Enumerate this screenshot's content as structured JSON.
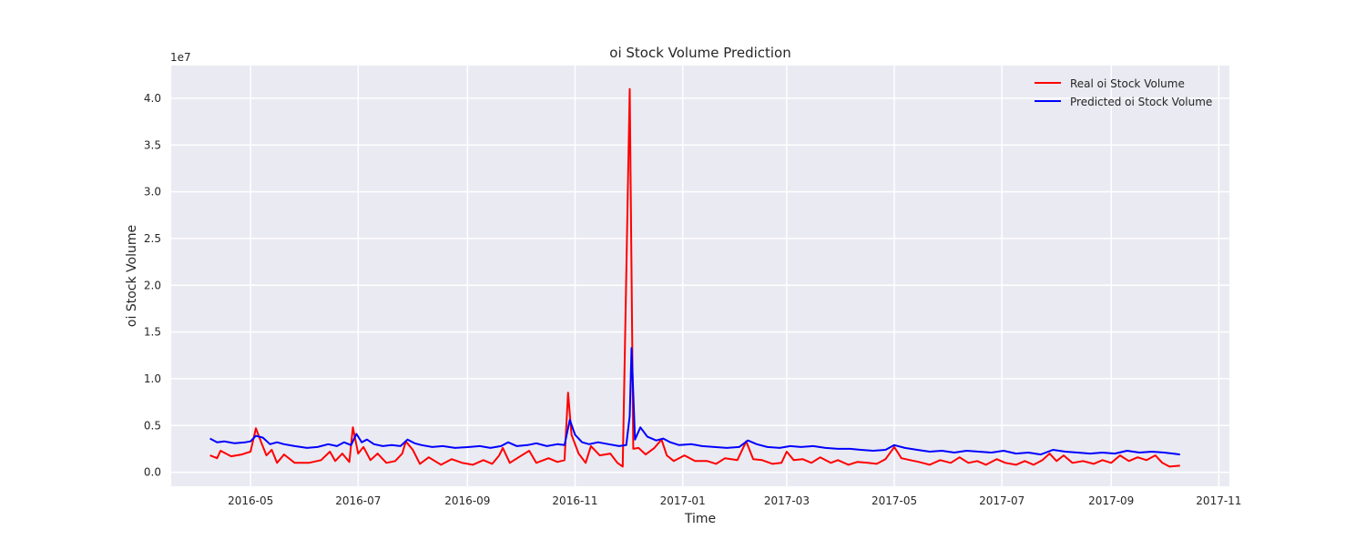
{
  "chart_data": {
    "type": "line",
    "title": "oi Stock Volume Prediction",
    "xlabel": "Time",
    "ylabel": "oi Stock Volume",
    "y_offset_label": "1e7",
    "xlim": [
      "2016-03-17",
      "2017-11-07"
    ],
    "ylim": [
      -1500000,
      43500000
    ],
    "grid": true,
    "legend_position": "top-right",
    "x_ticks": [
      "2016-05",
      "2016-07",
      "2016-09",
      "2016-11",
      "2017-01",
      "2017-03",
      "2017-05",
      "2017-07",
      "2017-09",
      "2017-11"
    ],
    "y_ticks": [
      "0.0",
      "0.5",
      "1.0",
      "1.5",
      "2.0",
      "2.5",
      "3.0",
      "3.5",
      "4.0"
    ],
    "series": [
      {
        "name": "Real oi Stock Volume",
        "color": "#ff0000",
        "points": [
          [
            "2016-04-08",
            1800000
          ],
          [
            "2016-04-12",
            1500000
          ],
          [
            "2016-04-14",
            2300000
          ],
          [
            "2016-04-20",
            1700000
          ],
          [
            "2016-04-26",
            1900000
          ],
          [
            "2016-05-01",
            2200000
          ],
          [
            "2016-05-04",
            4700000
          ],
          [
            "2016-05-07",
            3200000
          ],
          [
            "2016-05-10",
            1800000
          ],
          [
            "2016-05-13",
            2400000
          ],
          [
            "2016-05-16",
            1000000
          ],
          [
            "2016-05-20",
            1900000
          ],
          [
            "2016-05-26",
            1000000
          ],
          [
            "2016-06-03",
            1000000
          ],
          [
            "2016-06-10",
            1300000
          ],
          [
            "2016-06-15",
            2200000
          ],
          [
            "2016-06-18",
            1200000
          ],
          [
            "2016-06-22",
            2000000
          ],
          [
            "2016-06-26",
            1100000
          ],
          [
            "2016-06-28",
            4800000
          ],
          [
            "2016-07-01",
            2000000
          ],
          [
            "2016-07-04",
            2700000
          ],
          [
            "2016-07-08",
            1300000
          ],
          [
            "2016-07-12",
            2000000
          ],
          [
            "2016-07-17",
            1000000
          ],
          [
            "2016-07-22",
            1200000
          ],
          [
            "2016-07-26",
            2000000
          ],
          [
            "2016-07-28",
            3300000
          ],
          [
            "2016-08-01",
            2400000
          ],
          [
            "2016-08-05",
            900000
          ],
          [
            "2016-08-10",
            1600000
          ],
          [
            "2016-08-17",
            800000
          ],
          [
            "2016-08-23",
            1400000
          ],
          [
            "2016-08-29",
            1000000
          ],
          [
            "2016-09-04",
            800000
          ],
          [
            "2016-09-10",
            1300000
          ],
          [
            "2016-09-15",
            900000
          ],
          [
            "2016-09-19",
            1800000
          ],
          [
            "2016-09-21",
            2600000
          ],
          [
            "2016-09-25",
            1000000
          ],
          [
            "2016-09-30",
            1600000
          ],
          [
            "2016-10-06",
            2300000
          ],
          [
            "2016-10-10",
            1000000
          ],
          [
            "2016-10-17",
            1500000
          ],
          [
            "2016-10-22",
            1100000
          ],
          [
            "2016-10-26",
            1300000
          ],
          [
            "2016-10-28",
            8500000
          ],
          [
            "2016-10-30",
            4000000
          ],
          [
            "2016-11-03",
            2000000
          ],
          [
            "2016-11-07",
            1000000
          ],
          [
            "2016-11-10",
            2800000
          ],
          [
            "2016-11-15",
            1800000
          ],
          [
            "2016-11-21",
            2000000
          ],
          [
            "2016-11-25",
            1000000
          ],
          [
            "2016-11-28",
            600000
          ],
          [
            "2016-12-02",
            41000000
          ],
          [
            "2016-12-04",
            2500000
          ],
          [
            "2016-12-07",
            2600000
          ],
          [
            "2016-12-11",
            1900000
          ],
          [
            "2016-12-16",
            2600000
          ],
          [
            "2016-12-20",
            3500000
          ],
          [
            "2016-12-23",
            1800000
          ],
          [
            "2016-12-27",
            1200000
          ],
          [
            "2017-01-02",
            1800000
          ],
          [
            "2017-01-08",
            1200000
          ],
          [
            "2017-01-15",
            1200000
          ],
          [
            "2017-01-20",
            900000
          ],
          [
            "2017-01-25",
            1500000
          ],
          [
            "2017-02-01",
            1300000
          ],
          [
            "2017-02-06",
            3300000
          ],
          [
            "2017-02-10",
            1400000
          ],
          [
            "2017-02-15",
            1300000
          ],
          [
            "2017-02-21",
            900000
          ],
          [
            "2017-02-26",
            1000000
          ],
          [
            "2017-03-01",
            2200000
          ],
          [
            "2017-03-05",
            1300000
          ],
          [
            "2017-03-10",
            1400000
          ],
          [
            "2017-03-15",
            1000000
          ],
          [
            "2017-03-20",
            1600000
          ],
          [
            "2017-03-26",
            1000000
          ],
          [
            "2017-03-30",
            1300000
          ],
          [
            "2017-04-05",
            800000
          ],
          [
            "2017-04-10",
            1100000
          ],
          [
            "2017-04-16",
            1000000
          ],
          [
            "2017-04-21",
            900000
          ],
          [
            "2017-04-26",
            1400000
          ],
          [
            "2017-05-01",
            2700000
          ],
          [
            "2017-05-05",
            1500000
          ],
          [
            "2017-05-10",
            1300000
          ],
          [
            "2017-05-15",
            1100000
          ],
          [
            "2017-05-21",
            800000
          ],
          [
            "2017-05-27",
            1300000
          ],
          [
            "2017-06-02",
            1000000
          ],
          [
            "2017-06-07",
            1600000
          ],
          [
            "2017-06-12",
            1000000
          ],
          [
            "2017-06-17",
            1200000
          ],
          [
            "2017-06-22",
            800000
          ],
          [
            "2017-06-28",
            1400000
          ],
          [
            "2017-07-03",
            1000000
          ],
          [
            "2017-07-09",
            800000
          ],
          [
            "2017-07-14",
            1200000
          ],
          [
            "2017-07-19",
            800000
          ],
          [
            "2017-07-24",
            1300000
          ],
          [
            "2017-07-28",
            2000000
          ],
          [
            "2017-08-01",
            1200000
          ],
          [
            "2017-08-05",
            1800000
          ],
          [
            "2017-08-10",
            1000000
          ],
          [
            "2017-08-16",
            1200000
          ],
          [
            "2017-08-22",
            900000
          ],
          [
            "2017-08-27",
            1300000
          ],
          [
            "2017-09-01",
            1000000
          ],
          [
            "2017-09-06",
            1800000
          ],
          [
            "2017-09-11",
            1200000
          ],
          [
            "2017-09-16",
            1600000
          ],
          [
            "2017-09-21",
            1300000
          ],
          [
            "2017-09-26",
            1800000
          ],
          [
            "2017-09-30",
            1000000
          ],
          [
            "2017-10-04",
            600000
          ],
          [
            "2017-10-10",
            700000
          ]
        ]
      },
      {
        "name": "Predicted oi Stock Volume",
        "color": "#0000ff",
        "points": [
          [
            "2016-04-08",
            3600000
          ],
          [
            "2016-04-12",
            3200000
          ],
          [
            "2016-04-16",
            3300000
          ],
          [
            "2016-04-22",
            3100000
          ],
          [
            "2016-04-28",
            3200000
          ],
          [
            "2016-05-01",
            3300000
          ],
          [
            "2016-05-04",
            3900000
          ],
          [
            "2016-05-08",
            3700000
          ],
          [
            "2016-05-12",
            3000000
          ],
          [
            "2016-05-16",
            3200000
          ],
          [
            "2016-05-20",
            3000000
          ],
          [
            "2016-05-26",
            2800000
          ],
          [
            "2016-06-02",
            2600000
          ],
          [
            "2016-06-08",
            2700000
          ],
          [
            "2016-06-14",
            3000000
          ],
          [
            "2016-06-19",
            2800000
          ],
          [
            "2016-06-23",
            3200000
          ],
          [
            "2016-06-27",
            2900000
          ],
          [
            "2016-06-30",
            4100000
          ],
          [
            "2016-07-03",
            3200000
          ],
          [
            "2016-07-06",
            3500000
          ],
          [
            "2016-07-10",
            3000000
          ],
          [
            "2016-07-15",
            2800000
          ],
          [
            "2016-07-20",
            2900000
          ],
          [
            "2016-07-25",
            2800000
          ],
          [
            "2016-07-29",
            3500000
          ],
          [
            "2016-08-02",
            3100000
          ],
          [
            "2016-08-06",
            2900000
          ],
          [
            "2016-08-12",
            2700000
          ],
          [
            "2016-08-18",
            2800000
          ],
          [
            "2016-08-25",
            2600000
          ],
          [
            "2016-09-02",
            2700000
          ],
          [
            "2016-09-08",
            2800000
          ],
          [
            "2016-09-14",
            2600000
          ],
          [
            "2016-09-20",
            2800000
          ],
          [
            "2016-09-24",
            3200000
          ],
          [
            "2016-09-29",
            2800000
          ],
          [
            "2016-10-05",
            2900000
          ],
          [
            "2016-10-10",
            3100000
          ],
          [
            "2016-10-16",
            2800000
          ],
          [
            "2016-10-22",
            3000000
          ],
          [
            "2016-10-26",
            2900000
          ],
          [
            "2016-10-29",
            5600000
          ],
          [
            "2016-11-01",
            4000000
          ],
          [
            "2016-11-05",
            3200000
          ],
          [
            "2016-11-09",
            3000000
          ],
          [
            "2016-11-14",
            3200000
          ],
          [
            "2016-11-20",
            3000000
          ],
          [
            "2016-11-26",
            2800000
          ],
          [
            "2016-11-30",
            2900000
          ],
          [
            "2016-12-02",
            6000000
          ],
          [
            "2016-12-03",
            13300000
          ],
          [
            "2016-12-05",
            3500000
          ],
          [
            "2016-12-08",
            4800000
          ],
          [
            "2016-12-12",
            3800000
          ],
          [
            "2016-12-17",
            3400000
          ],
          [
            "2016-12-21",
            3600000
          ],
          [
            "2016-12-25",
            3200000
          ],
          [
            "2016-12-30",
            2900000
          ],
          [
            "2017-01-06",
            3000000
          ],
          [
            "2017-01-12",
            2800000
          ],
          [
            "2017-01-19",
            2700000
          ],
          [
            "2017-01-26",
            2600000
          ],
          [
            "2017-02-02",
            2700000
          ],
          [
            "2017-02-07",
            3400000
          ],
          [
            "2017-02-12",
            3000000
          ],
          [
            "2017-02-18",
            2700000
          ],
          [
            "2017-02-25",
            2600000
          ],
          [
            "2017-03-03",
            2800000
          ],
          [
            "2017-03-09",
            2700000
          ],
          [
            "2017-03-16",
            2800000
          ],
          [
            "2017-03-23",
            2600000
          ],
          [
            "2017-03-30",
            2500000
          ],
          [
            "2017-04-06",
            2500000
          ],
          [
            "2017-04-12",
            2400000
          ],
          [
            "2017-04-19",
            2300000
          ],
          [
            "2017-04-26",
            2400000
          ],
          [
            "2017-05-01",
            2900000
          ],
          [
            "2017-05-07",
            2600000
          ],
          [
            "2017-05-14",
            2400000
          ],
          [
            "2017-05-21",
            2200000
          ],
          [
            "2017-05-28",
            2300000
          ],
          [
            "2017-06-04",
            2100000
          ],
          [
            "2017-06-11",
            2300000
          ],
          [
            "2017-06-18",
            2200000
          ],
          [
            "2017-06-25",
            2100000
          ],
          [
            "2017-07-02",
            2300000
          ],
          [
            "2017-07-09",
            2000000
          ],
          [
            "2017-07-16",
            2100000
          ],
          [
            "2017-07-23",
            1900000
          ],
          [
            "2017-07-30",
            2400000
          ],
          [
            "2017-08-06",
            2200000
          ],
          [
            "2017-08-13",
            2100000
          ],
          [
            "2017-08-20",
            2000000
          ],
          [
            "2017-08-27",
            2100000
          ],
          [
            "2017-09-03",
            2000000
          ],
          [
            "2017-09-10",
            2300000
          ],
          [
            "2017-09-17",
            2100000
          ],
          [
            "2017-09-24",
            2200000
          ],
          [
            "2017-10-01",
            2100000
          ],
          [
            "2017-10-06",
            2000000
          ],
          [
            "2017-10-10",
            1900000
          ]
        ]
      }
    ]
  }
}
